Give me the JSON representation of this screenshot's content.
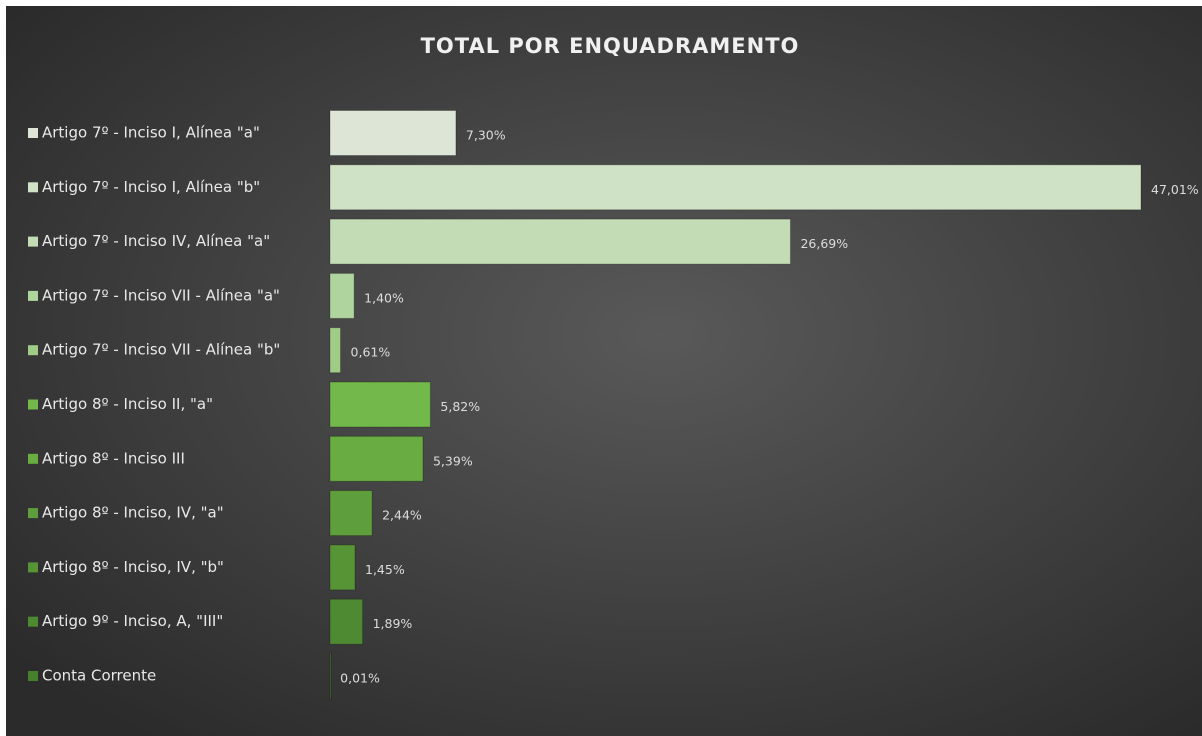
{
  "chart_data": {
    "type": "barh",
    "title": "TOTAL POR ENQUADRAMENTO",
    "categories": [
      "Artigo 7º - Inciso I, Alínea \"a\"",
      "Artigo 7º - Inciso I, Alínea \"b\"",
      "Artigo 7º - Inciso IV, Alínea \"a\"",
      "Artigo 7º - Inciso VII - Alínea \"a\"",
      "Artigo 7º - Inciso VII - Alínea \"b\"",
      "Artigo 8º - Inciso II, \"a\"",
      "Artigo 8º - Inciso III",
      "Artigo 8º - Inciso, IV, \"a\"",
      "Artigo 8º - Inciso, IV, \"b\"",
      "Artigo 9º - Inciso, A, \"III\"",
      "Conta Corrente"
    ],
    "values": [
      7.3,
      47.01,
      26.69,
      1.4,
      0.61,
      5.82,
      5.39,
      2.44,
      1.45,
      1.89,
      0.01
    ],
    "value_labels": [
      "7,30%",
      "47,01%",
      "26,69%",
      "1,40%",
      "0,61%",
      "5,82%",
      "5,39%",
      "2,44%",
      "1,45%",
      "1,89%",
      "0,01%"
    ],
    "colors": [
      "#dde6d6",
      "#d0e2c6",
      "#c3dcb5",
      "#b0d49e",
      "#a0cc88",
      "#72b84a",
      "#68ac42",
      "#5e9e3c",
      "#579436",
      "#4e8a32",
      "#46802c"
    ]
  }
}
